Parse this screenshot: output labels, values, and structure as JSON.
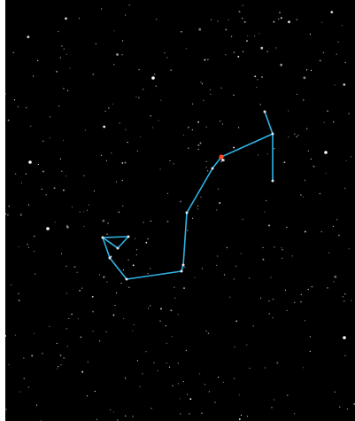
{
  "scene": {
    "background": "#000000",
    "frame_color": "#ffffff",
    "line_color": "#2fb4e6",
    "star_color": "#ffffff",
    "highlight_star_color": "#ff4a2a",
    "constellation_star_color": "#dde6f0"
  }
}
